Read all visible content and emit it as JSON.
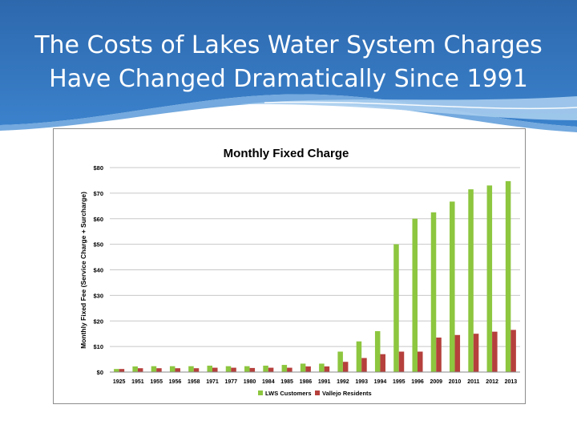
{
  "slide": {
    "title_line1": "The Costs of Lakes Water System Charges",
    "title_line2": "Have Changed Dramatically Since 1991"
  },
  "colors": {
    "header_blue": "#2f6fb6",
    "header_blue_light": "#4f8fd0",
    "wave": "#9fc5ea",
    "lws": "#8dc63f",
    "vallejo": "#b5403c",
    "grid": "#c8c8c8"
  },
  "chart_data": {
    "type": "bar",
    "title": "Monthly Fixed Charge",
    "xlabel": "",
    "ylabel": "Monthly Fixed Fee (Service Charge + Surcharge)",
    "ylim": [
      0,
      80
    ],
    "yticks": [
      0,
      10,
      20,
      30,
      40,
      50,
      60,
      70,
      80
    ],
    "ytick_labels": [
      "$0",
      "$10",
      "$20",
      "$30",
      "$40",
      "$50",
      "$60",
      "$70",
      "$80"
    ],
    "grid": true,
    "legend": "bottom",
    "categories": [
      "1925",
      "1951",
      "1955",
      "1956",
      "1958",
      "1971",
      "1977",
      "1980",
      "1984",
      "1985",
      "1986",
      "1991",
      "1992",
      "1993",
      "1994",
      "1995",
      "1996",
      "2009",
      "2010",
      "2011",
      "2012",
      "2013"
    ],
    "series": [
      {
        "name": "LWS Customers",
        "values": [
          1.2,
          2.2,
          2.3,
          2.3,
          2.3,
          2.5,
          2.3,
          2.3,
          2.5,
          2.8,
          3.3,
          3.3,
          8,
          12,
          16,
          50,
          60,
          62.5,
          66.7,
          71.5,
          73,
          74.7
        ]
      },
      {
        "name": "Vallejo Residents",
        "values": [
          1.2,
          1.5,
          1.5,
          1.5,
          1.5,
          1.7,
          1.7,
          1.6,
          1.7,
          1.7,
          2.2,
          2.2,
          4,
          5.5,
          7,
          8,
          8,
          13.5,
          14.5,
          15,
          15.8,
          16.5
        ]
      }
    ]
  }
}
